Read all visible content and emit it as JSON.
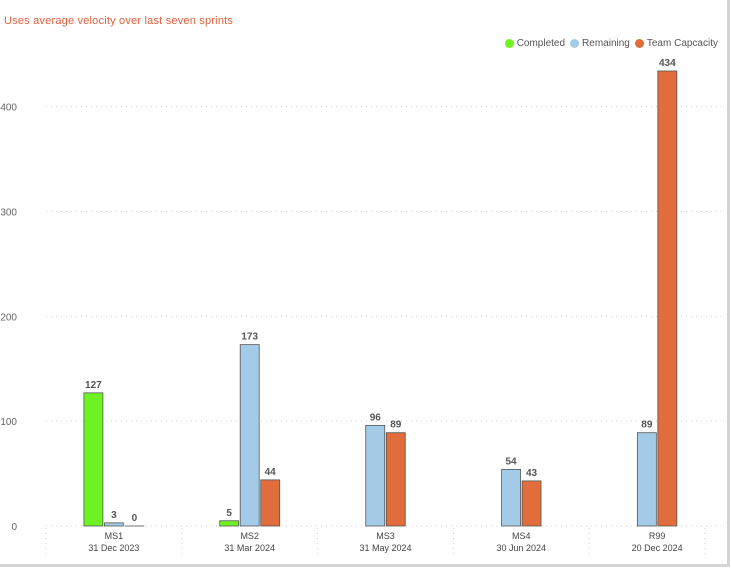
{
  "subtitle": "Uses average velocity over last seven sprints",
  "colors": {
    "subtitle": "#e1603d",
    "completed": "#6ff223",
    "remaining": "#a3cbe8",
    "capacity": "#e06d3b",
    "grid": "#cfcfcf"
  },
  "chart_data": {
    "type": "bar",
    "title": "",
    "xlabel": "",
    "ylabel": "",
    "ylim": [
      0,
      450
    ],
    "yticks": [
      0,
      100,
      200,
      300,
      400
    ],
    "grid": true,
    "legend_position": "top-right",
    "categories": [
      {
        "name": "MS1",
        "date": "31 Dec 2023"
      },
      {
        "name": "MS2",
        "date": "31 Mar 2024"
      },
      {
        "name": "MS3",
        "date": "31 May 2024"
      },
      {
        "name": "MS4",
        "date": "30 Jun 2024"
      },
      {
        "name": "R99",
        "date": "20 Dec 2024"
      }
    ],
    "series": [
      {
        "name": "Completed",
        "color_key": "completed",
        "values": [
          127,
          5,
          null,
          null,
          null
        ]
      },
      {
        "name": "Remaining",
        "color_key": "remaining",
        "values": [
          3,
          173,
          96,
          54,
          89
        ]
      },
      {
        "name": "Team Capcacity",
        "color_key": "capacity",
        "values": [
          0,
          44,
          89,
          43,
          434
        ]
      }
    ]
  }
}
